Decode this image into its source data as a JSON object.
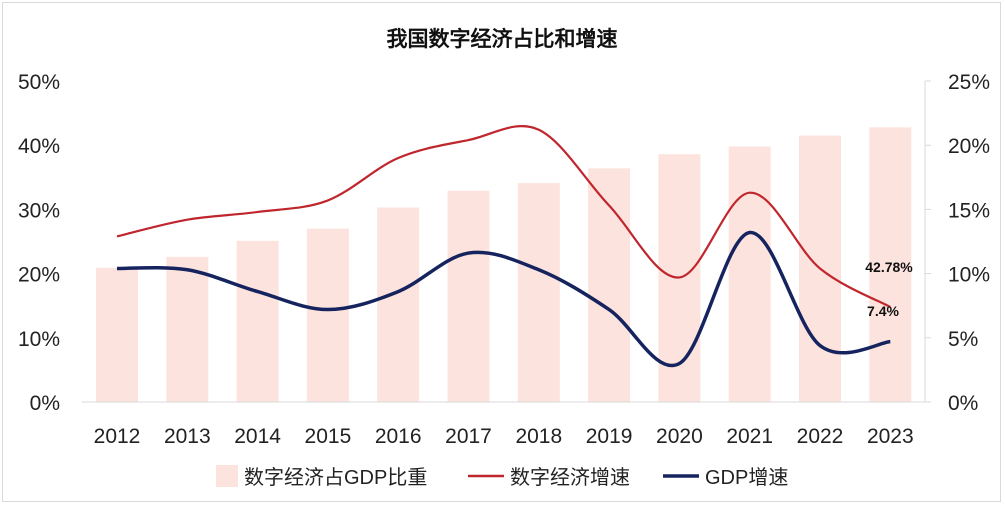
{
  "chart_data": {
    "type": "bar+line",
    "title": "我国数字经济占比和增速",
    "categories": [
      "2012",
      "2013",
      "2014",
      "2015",
      "2016",
      "2017",
      "2018",
      "2019",
      "2020",
      "2021",
      "2022",
      "2023"
    ],
    "left_axis": {
      "ylim": [
        0,
        50
      ],
      "ticks": [
        "0%",
        "10%",
        "20%",
        "30%",
        "40%",
        "50%"
      ]
    },
    "right_axis": {
      "ylim": [
        0,
        25
      ],
      "ticks": [
        "0%",
        "5%",
        "10%",
        "15%",
        "20%",
        "25%"
      ]
    },
    "series": [
      {
        "name": "数字经济占GDP比重",
        "type": "bar",
        "axis": "left",
        "color": "#fde3dd",
        "values": [
          20.9,
          22.6,
          25.1,
          27.0,
          30.3,
          32.9,
          34.1,
          36.4,
          38.6,
          39.8,
          41.5,
          42.78
        ]
      },
      {
        "name": "数字经济增速",
        "type": "line",
        "axis": "right",
        "color": "#c0262d",
        "values": [
          12.9,
          14.2,
          14.8,
          15.7,
          19.0,
          20.4,
          21.2,
          15.3,
          9.7,
          16.3,
          10.4,
          7.4
        ]
      },
      {
        "name": "GDP增速",
        "type": "line",
        "axis": "right",
        "color": "#15235e",
        "values": [
          10.4,
          10.3,
          8.6,
          7.2,
          8.6,
          11.6,
          10.3,
          7.2,
          3.0,
          13.2,
          4.4,
          4.7
        ]
      }
    ],
    "data_labels": [
      "42.78%",
      "7.4%"
    ],
    "legend_position": "bottom",
    "grid": false
  }
}
